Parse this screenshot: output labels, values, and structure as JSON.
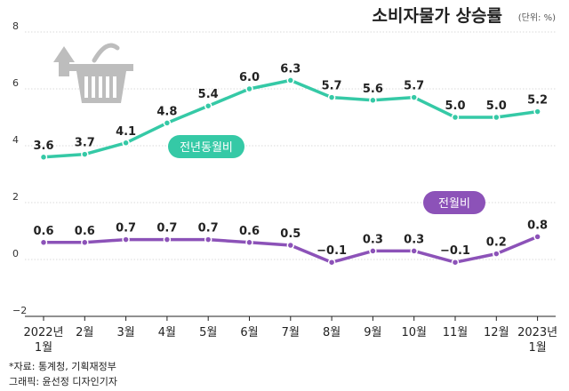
{
  "chart_data": {
    "type": "line",
    "title": "소비자물가 상승률",
    "unit_label": "(단위: %)",
    "categories": [
      [
        "2022년",
        "1월"
      ],
      [
        "2월"
      ],
      [
        "3월"
      ],
      [
        "4월"
      ],
      [
        "5월"
      ],
      [
        "6월"
      ],
      [
        "7월"
      ],
      [
        "8월"
      ],
      [
        "9월"
      ],
      [
        "10월"
      ],
      [
        "11월"
      ],
      [
        "12월"
      ],
      [
        "2023년",
        "1월"
      ]
    ],
    "yticks": [
      "8",
      "6",
      "4",
      "2",
      "0",
      "−2"
    ],
    "ylim": [
      -2,
      8
    ],
    "grid": true,
    "series": [
      {
        "name": "전년동월비",
        "color": "#35c9a6",
        "values": [
          3.6,
          3.7,
          4.1,
          4.8,
          5.4,
          6.0,
          6.3,
          5.7,
          5.6,
          5.7,
          5.0,
          5.0,
          5.2
        ],
        "labels": [
          "3.6",
          "3.7",
          "4.1",
          "4.8",
          "5.4",
          "6.0",
          "6.3",
          "5.7",
          "5.6",
          "5.7",
          "5.0",
          "5.0",
          "5.2"
        ]
      },
      {
        "name": "전월비",
        "color": "#8c52b8",
        "values": [
          0.6,
          0.6,
          0.7,
          0.7,
          0.7,
          0.6,
          0.5,
          -0.1,
          0.3,
          0.3,
          -0.1,
          0.2,
          0.8
        ],
        "labels": [
          "0.6",
          "0.6",
          "0.7",
          "0.7",
          "0.7",
          "0.6",
          "0.5",
          "−0.1",
          "0.3",
          "0.3",
          "−0.1",
          "0.2",
          "0.8"
        ]
      }
    ]
  },
  "footer": {
    "source": "*자료: 통계청, 기획재정부",
    "credit": "그래픽: 윤선정 디자인기자"
  },
  "icon": {
    "name": "basket-arrow-icon",
    "color": "#bdbdbd"
  }
}
